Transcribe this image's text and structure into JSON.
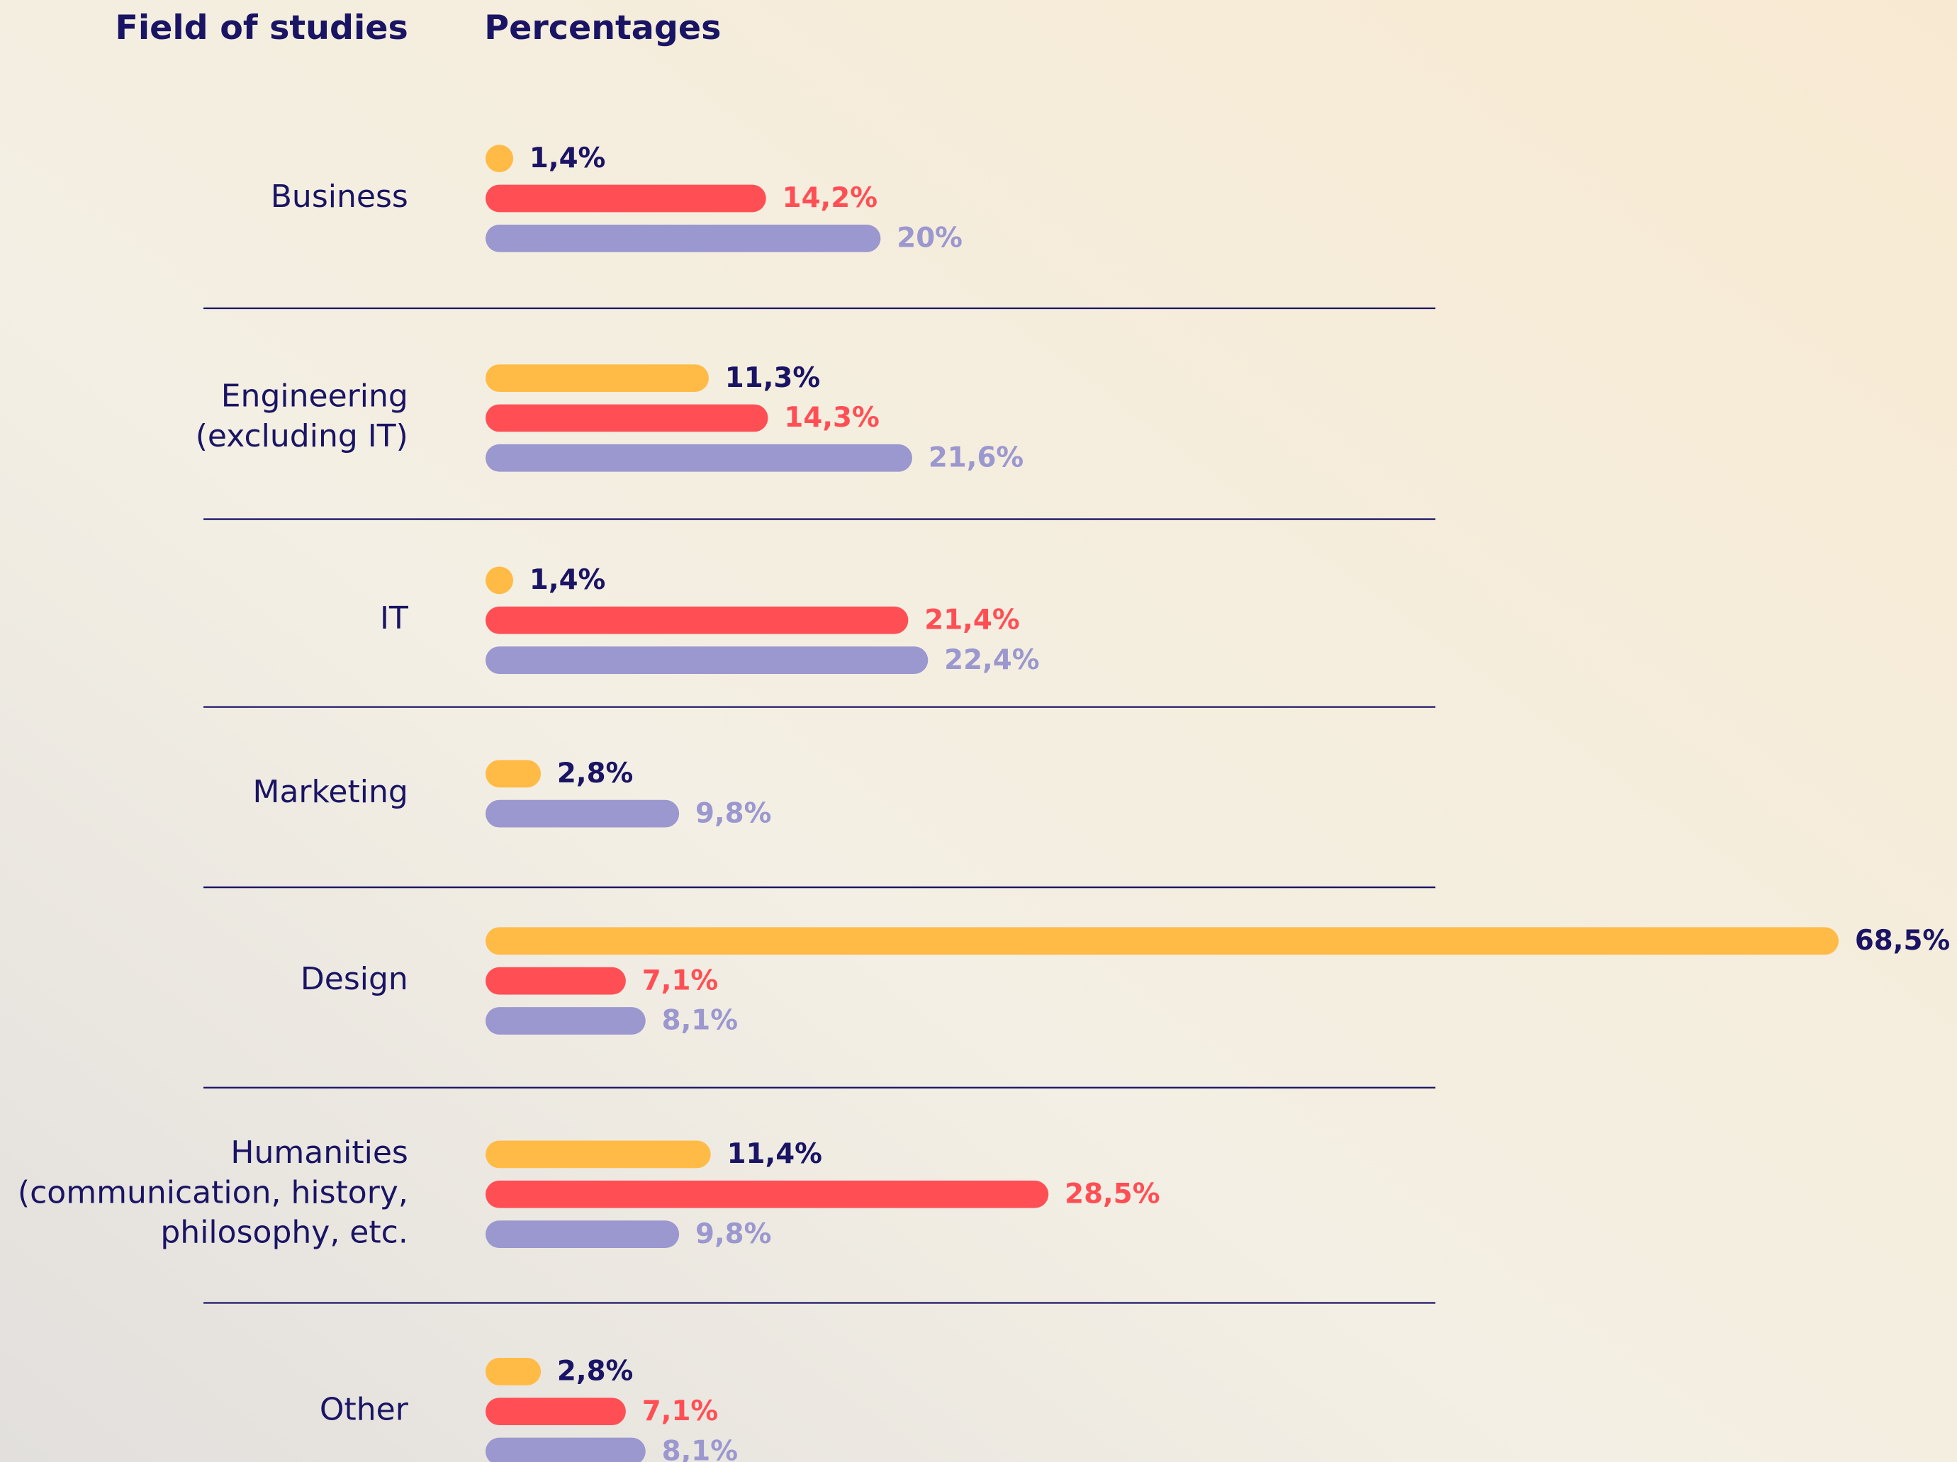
{
  "chart_data": {
    "type": "bar",
    "orientation": "horizontal",
    "ylabel": "Field of studies",
    "xlabel": "Percentages",
    "categories": [
      "Business",
      "Engineering\n(excluding IT)",
      "IT",
      "Marketing",
      "Design",
      "Humanities\n(communication, history,\nphilosophy, etc.",
      "Other"
    ],
    "series": [
      {
        "color": "#ffbb45",
        "label_color": "#1a1464",
        "values": [
          1.4,
          11.3,
          1.4,
          2.8,
          68.5,
          11.4,
          2.8
        ],
        "value_labels": [
          "1,4%",
          "11,3%",
          "1,4%",
          "2,8%",
          "68,5%",
          "11,4%",
          "2,8%"
        ]
      },
      {
        "color": "#ff4f55",
        "label_color": "#ff4f55",
        "values": [
          14.2,
          14.3,
          21.4,
          null,
          7.1,
          28.5,
          7.1
        ],
        "value_labels": [
          "14,2%",
          "14,3%",
          "21,4%",
          null,
          "7,1%",
          "28,5%",
          "7,1%"
        ]
      },
      {
        "color": "#9b97cf",
        "label_color": "#9b97cf",
        "values": [
          20,
          21.6,
          22.4,
          9.8,
          8.1,
          9.8,
          8.1
        ],
        "value_labels": [
          "20%",
          "21,6%",
          "22,4%",
          "9,8%",
          "8,1%",
          "9,8%",
          "8,1%"
        ]
      }
    ]
  }
}
